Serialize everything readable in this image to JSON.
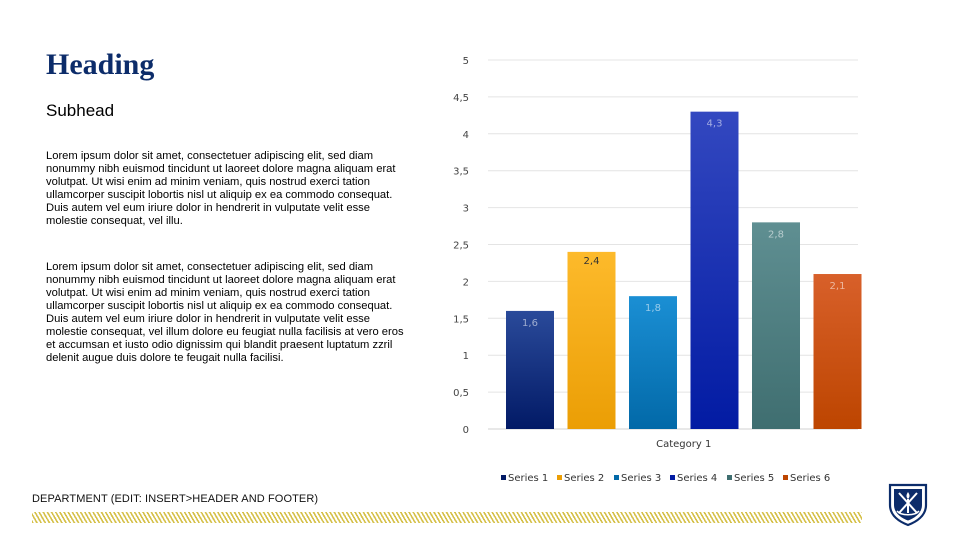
{
  "slide": {
    "heading": "Heading",
    "subhead": "Subhead",
    "paragraph1": "Lorem ipsum dolor sit amet, consectetuer adipiscing elit, sed diam nonummy nibh euismod tincidunt ut laoreet dolore magna aliquam erat volutpat. Ut wisi enim ad minim veniam, quis nostrud exerci tation ullamcorper suscipit lobortis nisl ut aliquip ex ea commodo consequat. Duis autem vel eum iriure dolor in hendrerit in vulputate velit esse molestie consequat, vel illu.",
    "paragraph2": "Lorem ipsum dolor sit amet, consectetuer adipiscing elit, sed diam nonummy nibh euismod tincidunt ut laoreet dolore magna aliquam erat volutpat. Ut wisi enim ad minim veniam, quis nostrud exerci tation ullamcorper suscipit lobortis nisl ut aliquip ex ea commodo consequat. Duis autem vel eum iriure dolor in hendrerit in vulputate velit esse molestie consequat, vel illum dolore eu feugiat nulla facilisis at vero eros et accumsan et iusto odio dignissim qui blandit praesent luptatum zzril delenit augue duis dolore te feugait nulla facilisi.",
    "footer": "DEPARTMENT (EDIT: INSERT>HEADER AND FOOTER)",
    "logo_icon": "shield-torch-logo",
    "colors": {
      "heading": "#0c2c6a",
      "stripe": "#d6c14a",
      "shield": "#0c2c6a"
    }
  },
  "chart_data": {
    "type": "bar",
    "categories": [
      "Category 1"
    ],
    "series": [
      {
        "name": "Series 1",
        "values": [
          1.6
        ],
        "label": "1,6",
        "color_top": "#2a4a9a",
        "color_bottom": "#021a66"
      },
      {
        "name": "Series 2",
        "values": [
          2.4
        ],
        "label": "2,4",
        "color_top": "#fdba2b",
        "color_bottom": "#eb9e05"
      },
      {
        "name": "Series 3",
        "values": [
          1.8
        ],
        "label": "1,8",
        "color_top": "#1b8fd4",
        "color_bottom": "#0269a8"
      },
      {
        "name": "Series 4",
        "values": [
          4.3
        ],
        "label": "4,3",
        "color_top": "#3348c0",
        "color_bottom": "#021ba3"
      },
      {
        "name": "Series 5",
        "values": [
          2.8
        ],
        "label": "2,8",
        "color_top": "#5f8f92",
        "color_bottom": "#3f6e70"
      },
      {
        "name": "Series 6",
        "values": [
          2.1
        ],
        "label": "2,1",
        "color_top": "#d8602a",
        "color_bottom": "#bd4500"
      }
    ],
    "ylim": [
      0,
      5
    ],
    "yticks": [
      "0",
      "0,5",
      "1",
      "1,5",
      "2",
      "2,5",
      "3",
      "3,5",
      "4",
      "4,5",
      "5"
    ],
    "grid": true,
    "title": "",
    "xlabel": "",
    "ylabel": "",
    "legend": "bottom"
  }
}
